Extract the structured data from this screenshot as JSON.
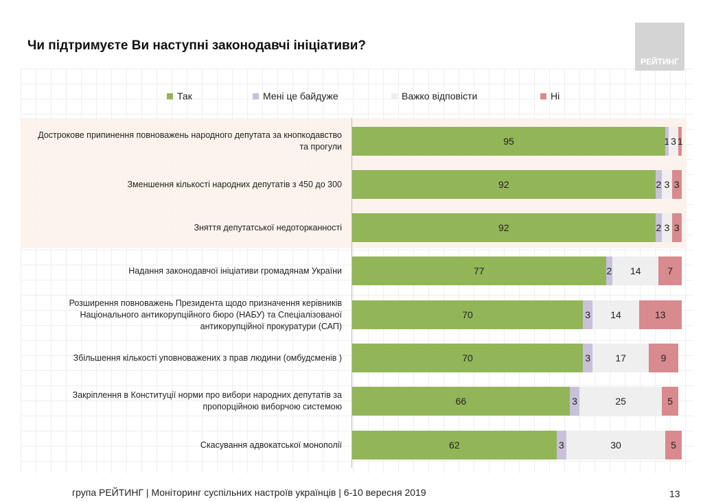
{
  "title": "Чи підтримуєте Ви наступні законодавчі ініціативи?",
  "logo": "РЕЙТИНГ",
  "footer": "група РЕЙТИНГ | Моніторинг суспільних настроїв українців | 6-10 вересня 2019",
  "page_number": "13",
  "chart_data": {
    "type": "stacked-bar-horizontal",
    "xlim": [
      0,
      100
    ],
    "legend_position": "top",
    "colors": [
      "#92b558",
      "#c9c1da",
      "#efefef",
      "#d88a8e"
    ],
    "series": [
      {
        "name": "Так",
        "values": [
          95,
          92,
          92,
          77,
          70,
          70,
          66,
          62
        ]
      },
      {
        "name": "Мені це байдуже",
        "values": [
          1,
          2,
          2,
          2,
          3,
          3,
          3,
          3
        ]
      },
      {
        "name": "Важко відповісти",
        "values": [
          3,
          3,
          3,
          14,
          14,
          17,
          25,
          30
        ]
      },
      {
        "name": "Ні",
        "values": [
          1,
          3,
          3,
          7,
          13,
          9,
          5,
          5
        ]
      }
    ],
    "categories": [
      "Дострокове припинення повноважень народного депутата за кнопкодавство та прогули",
      "Зменшення кількості народних депутатів  з 450 до 300",
      "Зняття депутатської недоторканності",
      "Надання законодавчої ініціативи громадянам України",
      "Розширення повноважень Президента щодо призначення керівників Національного антикорупційного бюро (НАБУ) та Спеціалізованої антикорупційної прокуратури (САП)",
      "Збільшення кількості уповноважених з прав людини (омбудсменів )",
      "Закріплення в Конституції норми про вибори народних депутатів за пропорційною виборчою системою",
      "Скасування адвокатської монополії"
    ]
  }
}
